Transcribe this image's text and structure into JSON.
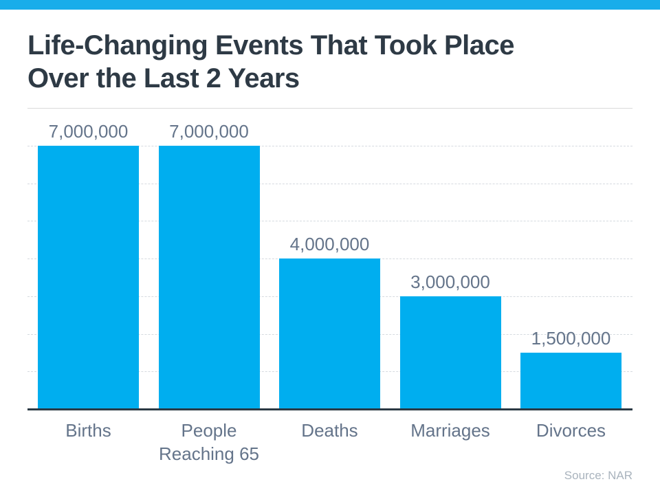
{
  "page": {
    "accent_color": "#18ADEA",
    "background_color": "#ffffff"
  },
  "header": {
    "title": "Life-Changing Events That Took Place\nOver the Last 2 Years",
    "title_color": "#2E3A45"
  },
  "chart_data": {
    "type": "bar",
    "title": "Life-Changing Events That Took Place Over the Last 2 Years",
    "categories": [
      "Births",
      "People Reaching 65",
      "Deaths",
      "Marriages",
      "Divorces"
    ],
    "values": [
      7000000,
      7000000,
      4000000,
      3000000,
      1500000
    ],
    "value_labels": [
      "7,000,000",
      "7,000,000",
      "4,000,000",
      "3,000,000",
      "1,500,000"
    ],
    "xlabel": "",
    "ylabel": "",
    "ylim": [
      0,
      8000000
    ],
    "gridline_interval": 1000000,
    "grid": true,
    "legend": false,
    "bar_color": "#00AEEF",
    "label_color": "#64748A",
    "gridline_color": "#d5dadf",
    "axis_color": "#2B3944"
  },
  "footer": {
    "source": "Source: NAR"
  }
}
